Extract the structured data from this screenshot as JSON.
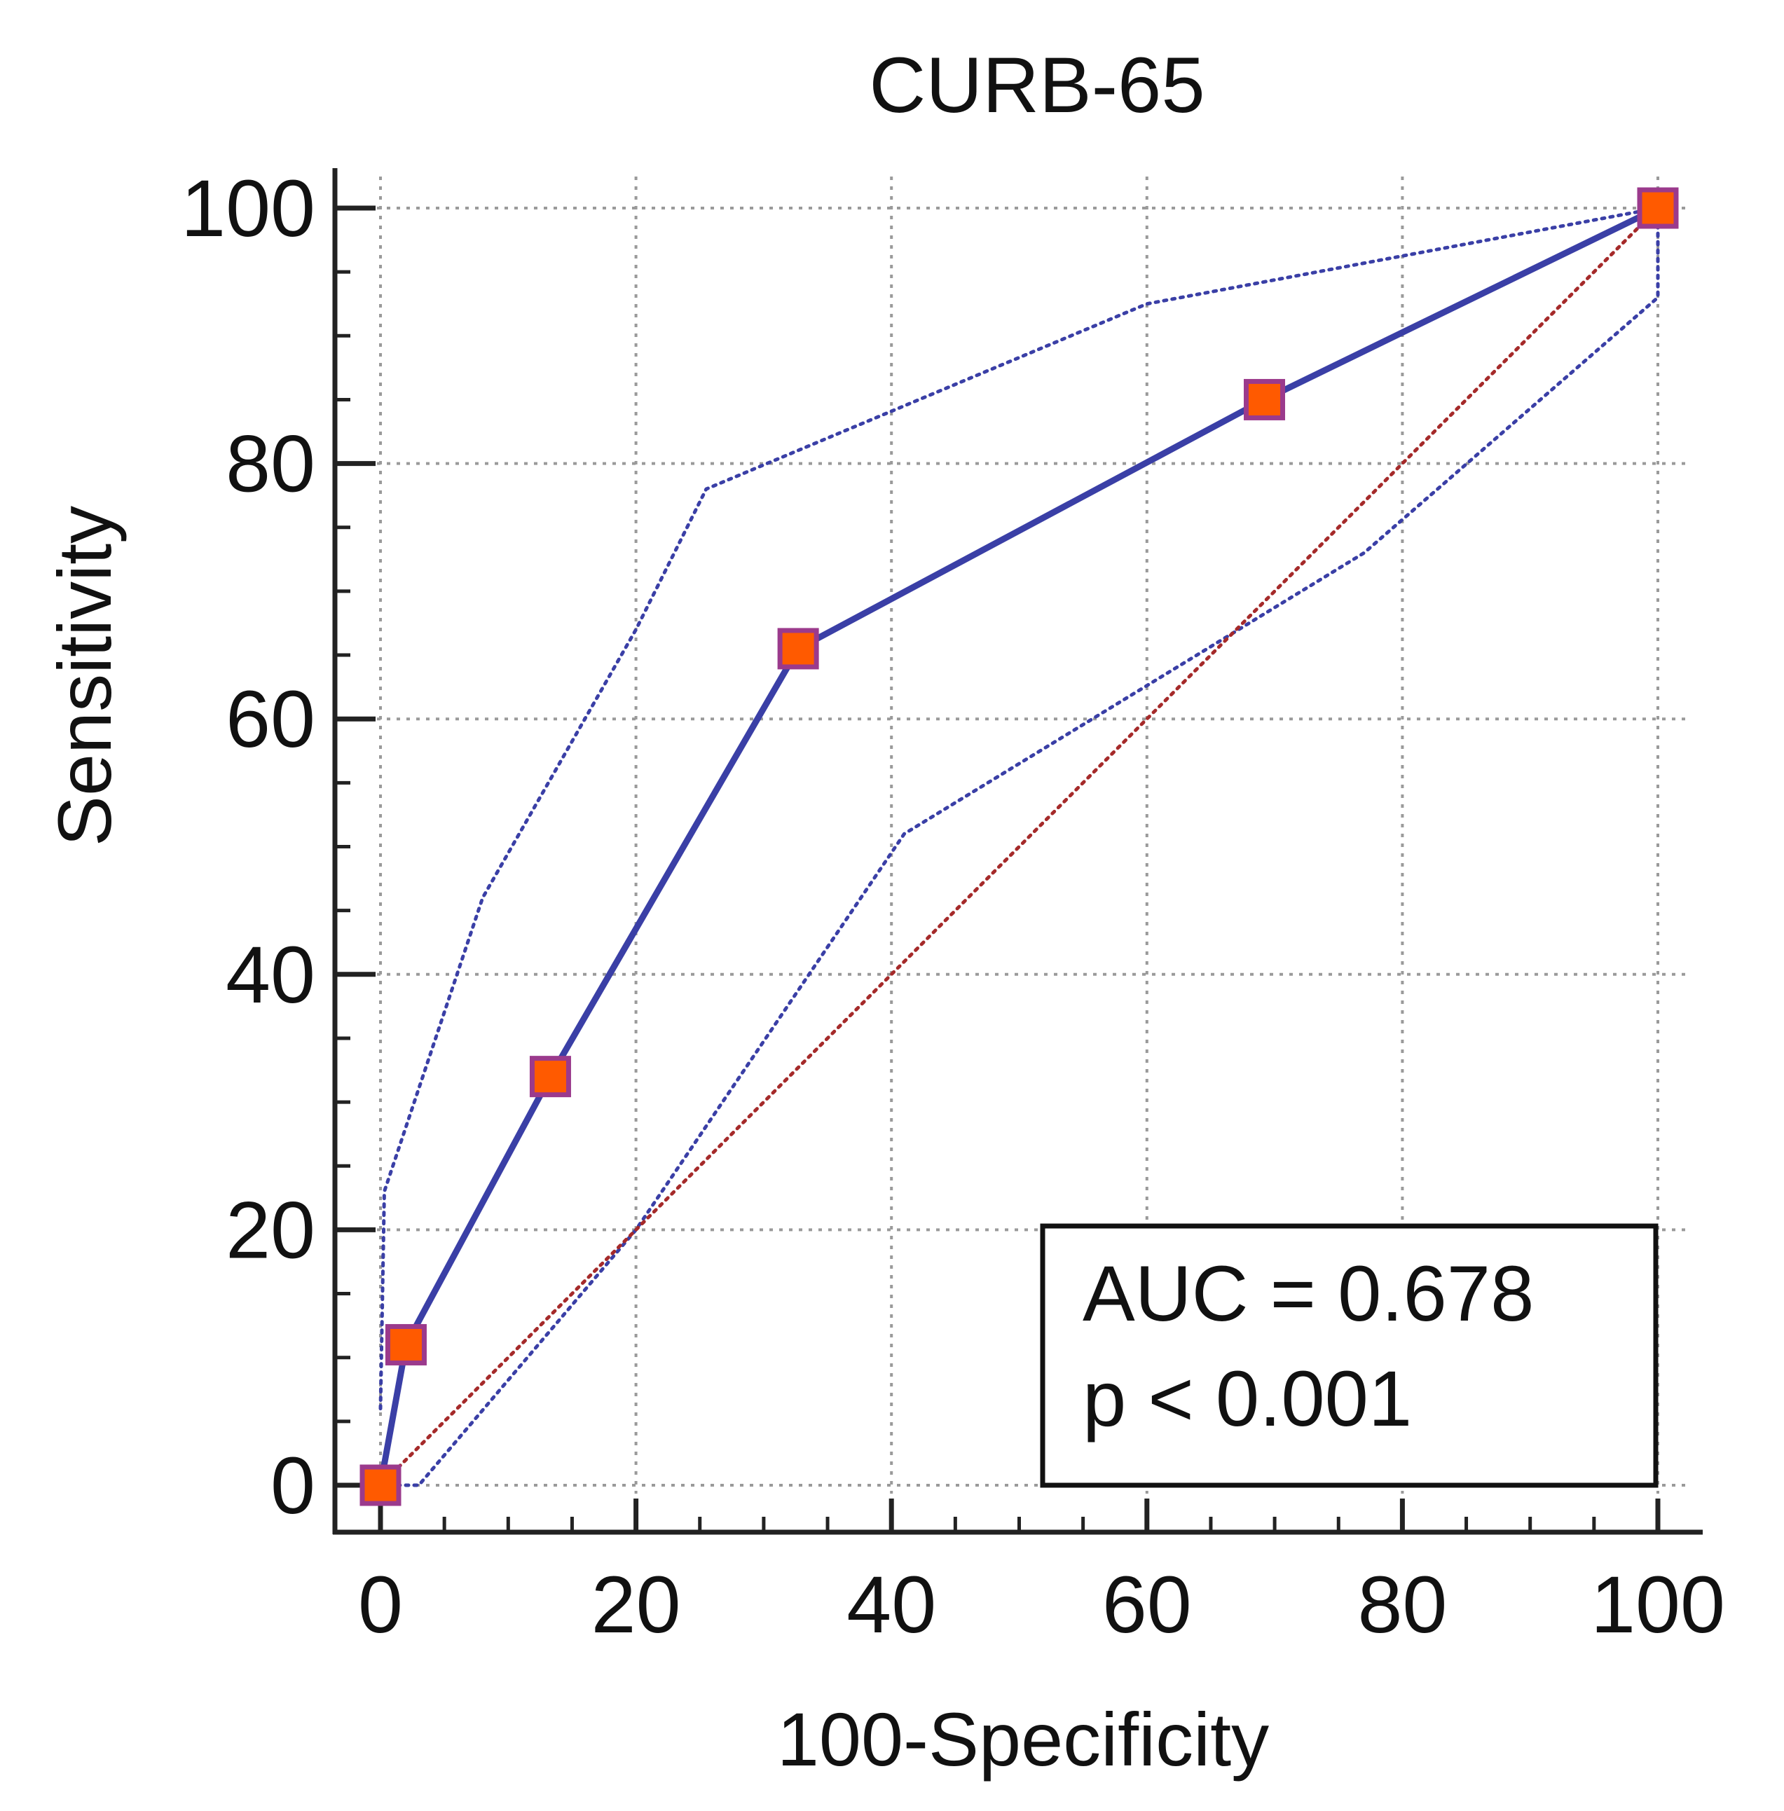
{
  "chart_data": {
    "type": "line",
    "title": "CURB-65",
    "xlabel": "100-Specificity",
    "ylabel": "Sensitivity",
    "xlim": [
      0,
      100
    ],
    "ylim": [
      0,
      100
    ],
    "xticks": [
      0,
      20,
      40,
      60,
      80,
      100
    ],
    "yticks": [
      0,
      20,
      40,
      60,
      80,
      100
    ],
    "grid": true,
    "annotation": [
      "AUC = 0.678",
      "p < 0.001"
    ],
    "series": [
      {
        "role": "roc",
        "color": "#3a3fa6",
        "x": [
          0,
          2,
          13.3,
          32.7,
          69.2,
          100
        ],
        "y": [
          0,
          11,
          32,
          65.5,
          85,
          100
        ]
      },
      {
        "role": "ci-upper",
        "color": "#3a3fa6",
        "x": [
          0,
          0.3,
          8,
          20,
          25.5,
          60,
          100
        ],
        "y": [
          6,
          23,
          46,
          67,
          78,
          92.5,
          100
        ]
      },
      {
        "role": "ci-lower",
        "color": "#3a3fa6",
        "x": [
          0,
          3,
          20,
          41,
          77,
          100,
          100
        ],
        "y": [
          0,
          0,
          20,
          51,
          73,
          93,
          100
        ]
      },
      {
        "role": "reference-diagonal",
        "color": "#a52a2a",
        "x": [
          0,
          100
        ],
        "y": [
          0,
          100
        ]
      }
    ],
    "marker_color": "#ff5a00",
    "marker_edge_color": "#9b3a8c"
  }
}
